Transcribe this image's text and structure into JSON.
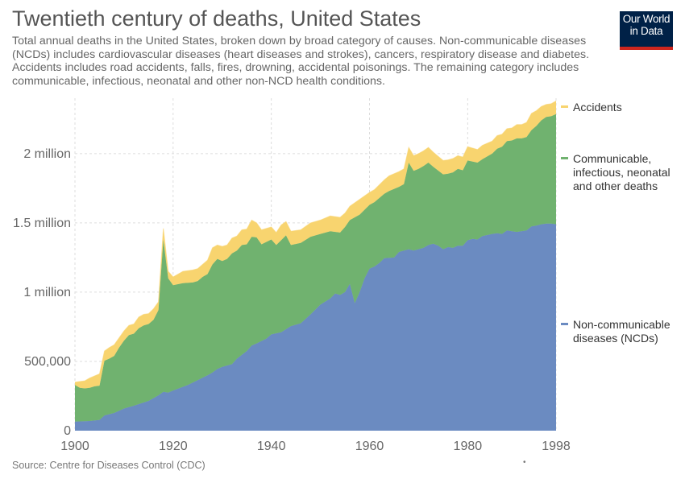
{
  "header": {
    "title": "Twentieth century of deaths, United States",
    "subtitle": "Total annual deaths in the United States, broken down by broad category of causes. Non-communicable diseases (NCDs) includes cardiovascular diseases (heart diseases and strokes), cancers, respiratory disease and diabetes. Accidents includes road accidents, falls, fires, drowning, accidental poisonings. The remaining category includes communicable, infectious, neonatal and other non-NCD health conditions.",
    "logo_line1": "Our World",
    "logo_line2": "in Data"
  },
  "footer": {
    "source": "Source: Centre for Diseases Control (CDC)",
    "marker": "•"
  },
  "chart_data": {
    "type": "area",
    "stacked": true,
    "x_ticks": [
      1900,
      1920,
      1940,
      1960,
      1980,
      1998
    ],
    "y_ticks": [
      0,
      500000,
      1000000,
      1500000,
      2000000
    ],
    "y_tick_labels": [
      "0",
      "500,000",
      "1 million",
      "1.5 million",
      "2 million"
    ],
    "xlim": [
      1900,
      1998
    ],
    "ylim": [
      0,
      2400000
    ],
    "grid": "dashed",
    "legend_placement": "right",
    "series": [
      {
        "name": "Non-communicable diseases (NCDs)",
        "color": "#6b8bc1",
        "points": [
          [
            1900,
            65000
          ],
          [
            1903,
            70000
          ],
          [
            1905,
            78000
          ],
          [
            1906,
            110000
          ],
          [
            1908,
            128000
          ],
          [
            1910,
            160000
          ],
          [
            1912,
            180000
          ],
          [
            1915,
            215000
          ],
          [
            1917,
            255000
          ],
          [
            1918,
            280000
          ],
          [
            1919,
            275000
          ],
          [
            1920,
            290000
          ],
          [
            1923,
            330000
          ],
          [
            1925,
            365000
          ],
          [
            1927,
            400000
          ],
          [
            1928,
            420000
          ],
          [
            1929,
            445000
          ],
          [
            1930,
            460000
          ],
          [
            1932,
            480000
          ],
          [
            1933,
            520000
          ],
          [
            1935,
            575000
          ],
          [
            1936,
            615000
          ],
          [
            1937,
            630000
          ],
          [
            1939,
            665000
          ],
          [
            1940,
            695000
          ],
          [
            1942,
            710000
          ],
          [
            1944,
            755000
          ],
          [
            1946,
            775000
          ],
          [
            1948,
            840000
          ],
          [
            1950,
            910000
          ],
          [
            1952,
            955000
          ],
          [
            1953,
            990000
          ],
          [
            1954,
            980000
          ],
          [
            1955,
            1000000
          ],
          [
            1956,
            1060000
          ],
          [
            1957,
            920000
          ],
          [
            1958,
            1000000
          ],
          [
            1959,
            1100000
          ],
          [
            1960,
            1170000
          ],
          [
            1961,
            1185000
          ],
          [
            1962,
            1210000
          ],
          [
            1963,
            1245000
          ],
          [
            1965,
            1250000
          ],
          [
            1966,
            1290000
          ],
          [
            1968,
            1310000
          ],
          [
            1969,
            1300000
          ],
          [
            1971,
            1320000
          ],
          [
            1972,
            1340000
          ],
          [
            1973,
            1350000
          ],
          [
            1974,
            1335000
          ],
          [
            1975,
            1310000
          ],
          [
            1976,
            1325000
          ],
          [
            1977,
            1320000
          ],
          [
            1978,
            1335000
          ],
          [
            1979,
            1335000
          ],
          [
            1980,
            1375000
          ],
          [
            1981,
            1385000
          ],
          [
            1982,
            1380000
          ],
          [
            1983,
            1405000
          ],
          [
            1985,
            1420000
          ],
          [
            1986,
            1425000
          ],
          [
            1987,
            1420000
          ],
          [
            1988,
            1445000
          ],
          [
            1989,
            1440000
          ],
          [
            1990,
            1435000
          ],
          [
            1992,
            1445000
          ],
          [
            1993,
            1475000
          ],
          [
            1994,
            1480000
          ],
          [
            1995,
            1490000
          ],
          [
            1996,
            1495000
          ],
          [
            1997,
            1495000
          ],
          [
            1998,
            1490000
          ]
        ]
      },
      {
        "name": "Communicable, infectious, neonatal and other deaths",
        "color": "#70b26f",
        "points": [
          [
            1900,
            330000
          ],
          [
            1901,
            310000
          ],
          [
            1902,
            305000
          ],
          [
            1903,
            310000
          ],
          [
            1904,
            320000
          ],
          [
            1905,
            325000
          ],
          [
            1906,
            505000
          ],
          [
            1907,
            520000
          ],
          [
            1908,
            540000
          ],
          [
            1909,
            600000
          ],
          [
            1910,
            650000
          ],
          [
            1911,
            690000
          ],
          [
            1912,
            700000
          ],
          [
            1913,
            740000
          ],
          [
            1914,
            760000
          ],
          [
            1915,
            770000
          ],
          [
            1916,
            800000
          ],
          [
            1917,
            870000
          ],
          [
            1918,
            1380000
          ],
          [
            1919,
            1100000
          ],
          [
            1920,
            1050000
          ],
          [
            1922,
            1065000
          ],
          [
            1924,
            1070000
          ],
          [
            1925,
            1080000
          ],
          [
            1926,
            1110000
          ],
          [
            1927,
            1130000
          ],
          [
            1928,
            1200000
          ],
          [
            1929,
            1240000
          ],
          [
            1930,
            1225000
          ],
          [
            1931,
            1240000
          ],
          [
            1932,
            1280000
          ],
          [
            1933,
            1300000
          ],
          [
            1934,
            1340000
          ],
          [
            1935,
            1345000
          ],
          [
            1936,
            1400000
          ],
          [
            1937,
            1395000
          ],
          [
            1938,
            1345000
          ],
          [
            1940,
            1380000
          ],
          [
            1941,
            1340000
          ],
          [
            1942,
            1375000
          ],
          [
            1943,
            1410000
          ],
          [
            1944,
            1340000
          ],
          [
            1946,
            1355000
          ],
          [
            1948,
            1400000
          ],
          [
            1950,
            1420000
          ],
          [
            1952,
            1440000
          ],
          [
            1954,
            1430000
          ],
          [
            1955,
            1470000
          ],
          [
            1956,
            1520000
          ],
          [
            1958,
            1560000
          ],
          [
            1960,
            1630000
          ],
          [
            1961,
            1650000
          ],
          [
            1963,
            1710000
          ],
          [
            1964,
            1730000
          ],
          [
            1966,
            1760000
          ],
          [
            1967,
            1780000
          ],
          [
            1968,
            1935000
          ],
          [
            1969,
            1875000
          ],
          [
            1970,
            1890000
          ],
          [
            1971,
            1910000
          ],
          [
            1972,
            1935000
          ],
          [
            1973,
            1905000
          ],
          [
            1975,
            1850000
          ],
          [
            1976,
            1855000
          ],
          [
            1977,
            1865000
          ],
          [
            1978,
            1890000
          ],
          [
            1979,
            1880000
          ],
          [
            1980,
            1950000
          ],
          [
            1982,
            1935000
          ],
          [
            1983,
            1960000
          ],
          [
            1985,
            2000000
          ],
          [
            1986,
            2035000
          ],
          [
            1987,
            2050000
          ],
          [
            1988,
            2090000
          ],
          [
            1989,
            2095000
          ],
          [
            1990,
            2110000
          ],
          [
            1991,
            2110000
          ],
          [
            1992,
            2120000
          ],
          [
            1993,
            2170000
          ],
          [
            1994,
            2200000
          ],
          [
            1995,
            2240000
          ],
          [
            1996,
            2265000
          ],
          [
            1997,
            2270000
          ],
          [
            1998,
            2285000
          ]
        ]
      },
      {
        "name": "Accidents",
        "color": "#f8d46f",
        "points": [
          [
            1900,
            350000
          ],
          [
            1901,
            355000
          ],
          [
            1902,
            360000
          ],
          [
            1903,
            380000
          ],
          [
            1904,
            395000
          ],
          [
            1905,
            410000
          ],
          [
            1906,
            575000
          ],
          [
            1907,
            600000
          ],
          [
            1908,
            620000
          ],
          [
            1909,
            670000
          ],
          [
            1910,
            720000
          ],
          [
            1911,
            760000
          ],
          [
            1912,
            770000
          ],
          [
            1913,
            820000
          ],
          [
            1914,
            840000
          ],
          [
            1915,
            845000
          ],
          [
            1916,
            880000
          ],
          [
            1917,
            930000
          ],
          [
            1918,
            1460000
          ],
          [
            1919,
            1150000
          ],
          [
            1920,
            1110000
          ],
          [
            1922,
            1150000
          ],
          [
            1924,
            1160000
          ],
          [
            1925,
            1170000
          ],
          [
            1926,
            1200000
          ],
          [
            1927,
            1230000
          ],
          [
            1928,
            1320000
          ],
          [
            1929,
            1340000
          ],
          [
            1930,
            1330000
          ],
          [
            1931,
            1340000
          ],
          [
            1932,
            1390000
          ],
          [
            1933,
            1405000
          ],
          [
            1934,
            1450000
          ],
          [
            1935,
            1455000
          ],
          [
            1936,
            1520000
          ],
          [
            1937,
            1500000
          ],
          [
            1938,
            1450000
          ],
          [
            1940,
            1470000
          ],
          [
            1941,
            1430000
          ],
          [
            1942,
            1485000
          ],
          [
            1943,
            1510000
          ],
          [
            1944,
            1440000
          ],
          [
            1946,
            1450000
          ],
          [
            1948,
            1500000
          ],
          [
            1950,
            1520000
          ],
          [
            1952,
            1550000
          ],
          [
            1954,
            1540000
          ],
          [
            1955,
            1570000
          ],
          [
            1956,
            1620000
          ],
          [
            1958,
            1670000
          ],
          [
            1960,
            1720000
          ],
          [
            1961,
            1740000
          ],
          [
            1963,
            1810000
          ],
          [
            1964,
            1840000
          ],
          [
            1966,
            1870000
          ],
          [
            1967,
            1890000
          ],
          [
            1968,
            2045000
          ],
          [
            1969,
            1985000
          ],
          [
            1970,
            2000000
          ],
          [
            1971,
            2020000
          ],
          [
            1972,
            2045000
          ],
          [
            1973,
            2010000
          ],
          [
            1975,
            1950000
          ],
          [
            1976,
            1955000
          ],
          [
            1977,
            1965000
          ],
          [
            1978,
            1985000
          ],
          [
            1979,
            1975000
          ],
          [
            1980,
            2050000
          ],
          [
            1982,
            2030000
          ],
          [
            1983,
            2060000
          ],
          [
            1985,
            2090000
          ],
          [
            1986,
            2130000
          ],
          [
            1987,
            2140000
          ],
          [
            1988,
            2180000
          ],
          [
            1989,
            2185000
          ],
          [
            1990,
            2210000
          ],
          [
            1991,
            2210000
          ],
          [
            1992,
            2225000
          ],
          [
            1993,
            2290000
          ],
          [
            1994,
            2310000
          ],
          [
            1995,
            2340000
          ],
          [
            1996,
            2355000
          ],
          [
            1997,
            2360000
          ],
          [
            1998,
            2380000
          ]
        ]
      }
    ],
    "legend": [
      {
        "label": "Accidents",
        "color": "#f8d46f"
      },
      {
        "label": "Communicable, infectious, neonatal and other deaths",
        "color": "#70b26f"
      },
      {
        "label": "Non-communicable diseases (NCDs)",
        "color": "#6b8bc1"
      }
    ]
  }
}
